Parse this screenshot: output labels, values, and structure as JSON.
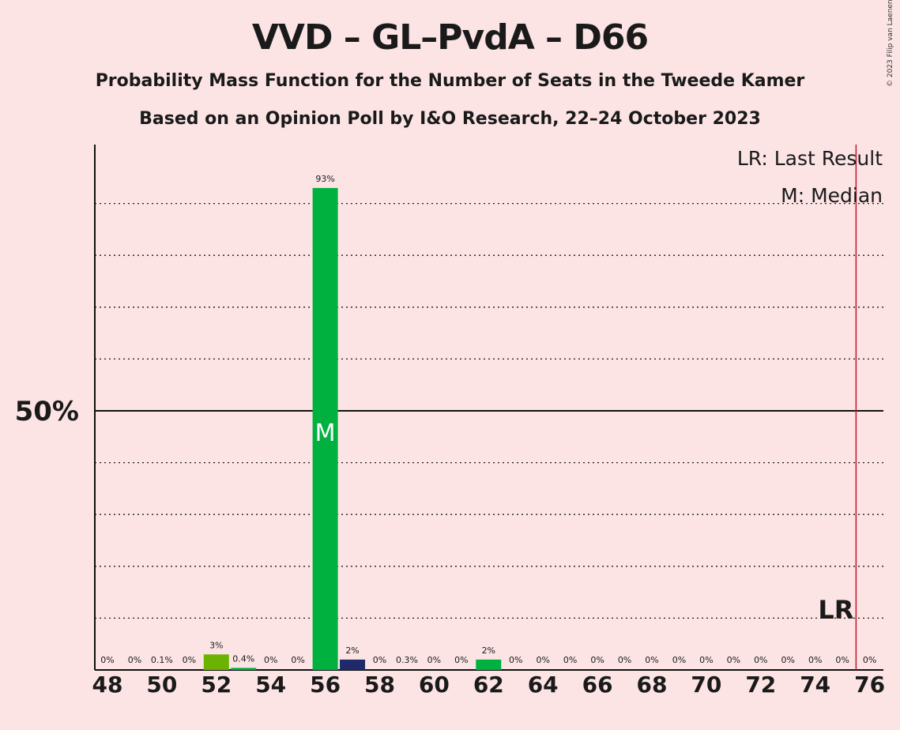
{
  "header": {
    "title": "VVD – GL–PvdA – D66",
    "subtitle": "Probability Mass Function for the Number of Seats in the Tweede Kamer",
    "subtitle2": "Based on an Opinion Poll by I&O Research, 22–24 October 2023",
    "copyright": "© 2023 Filip van Laenen"
  },
  "legend": {
    "last_result": "LR: Last Result",
    "median": "M: Median"
  },
  "colors": {
    "background": "#FCE4E5",
    "green": "#00B140",
    "light_green": "#6BB300",
    "navy": "#1F2A6B",
    "last_result_line": "#C0172A"
  },
  "chart_data": {
    "type": "bar",
    "title": "VVD – GL–PvdA – D66",
    "xlabel": "",
    "ylabel": "",
    "ylim": [
      0,
      100
    ],
    "y_tick_label": "50%",
    "y_tick_value": 50,
    "x": [
      48,
      49,
      50,
      51,
      52,
      53,
      54,
      55,
      56,
      57,
      58,
      59,
      60,
      61,
      62,
      63,
      64,
      65,
      66,
      67,
      68,
      69,
      70,
      71,
      72,
      73,
      74,
      75,
      76
    ],
    "values": [
      0,
      0,
      0.1,
      0,
      3,
      0.4,
      0,
      0,
      93,
      2,
      0,
      0.3,
      0,
      0,
      2,
      0,
      0,
      0,
      0,
      0,
      0,
      0,
      0,
      0,
      0,
      0,
      0,
      0,
      0
    ],
    "labels": [
      "0%",
      "0%",
      "0.1%",
      "0%",
      "3%",
      "0.4%",
      "0%",
      "0%",
      "93%",
      "2%",
      "0%",
      "0.3%",
      "0%",
      "0%",
      "2%",
      "0%",
      "0%",
      "0%",
      "0%",
      "0%",
      "0%",
      "0%",
      "0%",
      "0%",
      "0%",
      "0%",
      "0%",
      "0%",
      "0%"
    ],
    "bar_colors": {
      "52": "light_green",
      "53": "green",
      "56": "green",
      "57": "navy",
      "62": "green"
    },
    "x_tick_labels": [
      "48",
      "50",
      "52",
      "54",
      "56",
      "58",
      "60",
      "62",
      "64",
      "66",
      "68",
      "70",
      "72",
      "74",
      "76"
    ],
    "median": 56,
    "median_label": "M",
    "last_result": 75.5,
    "last_result_label": "LR",
    "grid": true,
    "legend_position": "top-right"
  }
}
